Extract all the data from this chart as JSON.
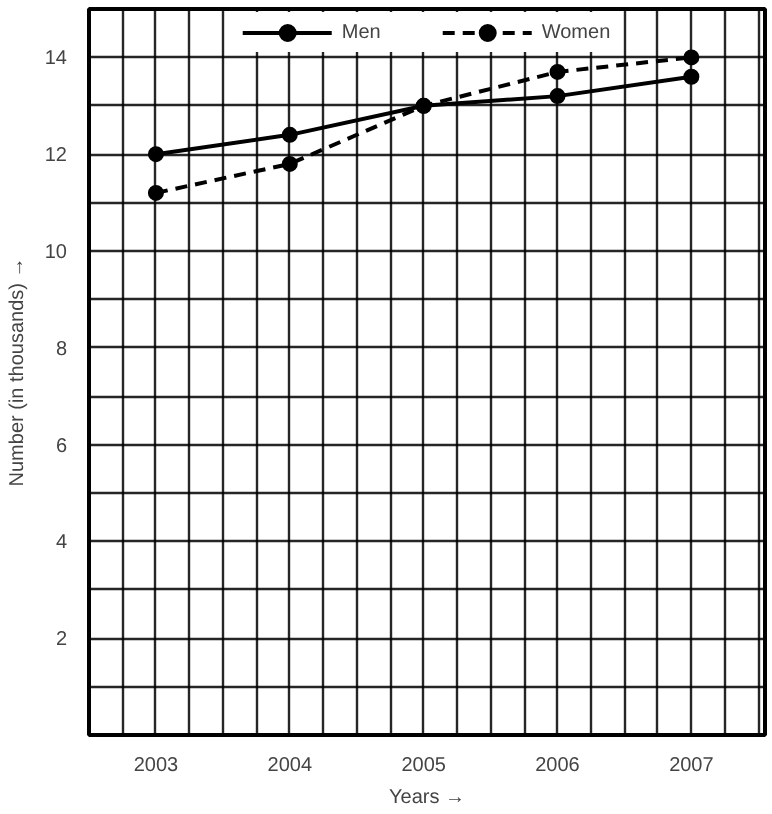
{
  "chart_data": {
    "type": "line",
    "xlabel": "Years →",
    "ylabel": "Number (in thousands) →",
    "x": [
      2003,
      2004,
      2005,
      2006,
      2007
    ],
    "series": [
      {
        "name": "Men",
        "color": "#000000",
        "values": [
          12,
          12.4,
          13,
          13.2,
          13.6
        ],
        "line_style": "solid"
      },
      {
        "name": "Women",
        "color": "#000000",
        "values": [
          11.2,
          11.8,
          13,
          13.7,
          14
        ],
        "line_style": "dashed"
      }
    ],
    "xlim": [
      2002.5,
      2007.55
    ],
    "ylim": [
      0,
      15
    ],
    "xticks": [
      {
        "value": 2002.75,
        "label": null
      },
      2003,
      {
        "value": 2003.25,
        "label": null
      },
      {
        "value": 2003.5,
        "label": null
      },
      {
        "value": 2003.75,
        "label": null
      },
      2004,
      {
        "value": 2004.25,
        "label": null
      },
      {
        "value": 2004.5,
        "label": null
      },
      {
        "value": 2004.75,
        "label": null
      },
      2005,
      {
        "value": 2005.25,
        "label": null
      },
      {
        "value": 2005.5,
        "label": null
      },
      {
        "value": 2005.75,
        "label": null
      },
      2006,
      {
        "value": 2006.25,
        "label": null
      },
      {
        "value": 2006.5,
        "label": null
      },
      {
        "value": 2006.75,
        "label": null
      },
      2007,
      {
        "value": 2007.25,
        "label": null
      },
      {
        "value": 2007.5,
        "label": null
      }
    ],
    "yticks": [
      {
        "value": 1,
        "label": null
      },
      2,
      {
        "value": 3,
        "label": null
      },
      4,
      {
        "value": 5,
        "label": null
      },
      6,
      {
        "value": 7,
        "label": null
      },
      8,
      {
        "value": 9,
        "label": null
      },
      10,
      {
        "value": 11,
        "label": null
      },
      12,
      {
        "value": 13,
        "label": null
      },
      14
    ],
    "grid": true,
    "legend": "top",
    "marker": "circle"
  }
}
